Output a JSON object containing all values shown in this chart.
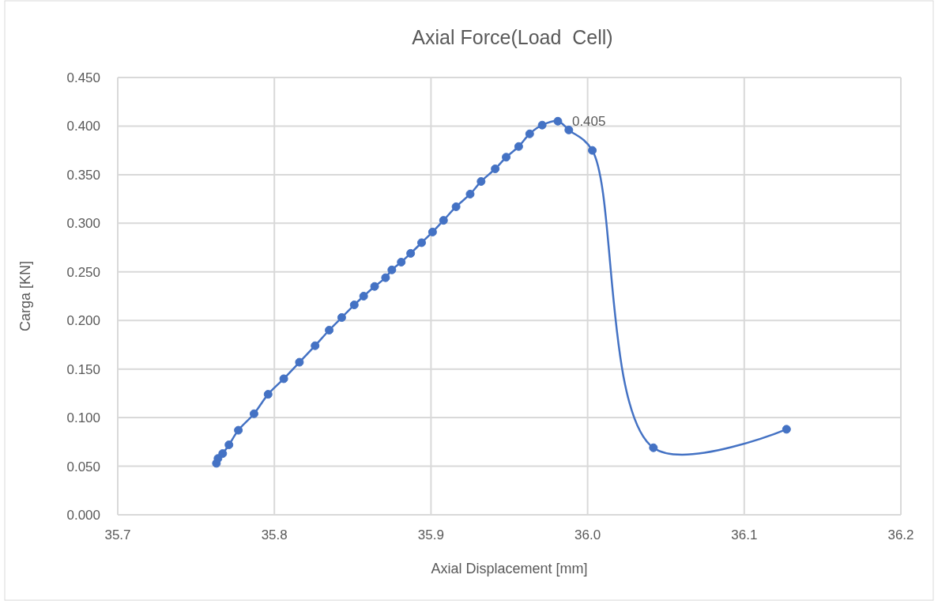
{
  "chart_data": {
    "type": "line",
    "title": "Axial Force(Load  Cell)",
    "xlabel": "Axial Displacement [mm]",
    "ylabel": "Carga [KN]",
    "xlim": [
      35.7,
      36.2
    ],
    "xticks": [
      {
        "value": 35.7,
        "label": "35.7"
      },
      {
        "value": 35.8,
        "label": "35.8"
      },
      {
        "value": 35.9,
        "label": "35.9"
      },
      {
        "value": 36.0,
        "label": "36.0"
      },
      {
        "value": 36.1,
        "label": "36.1"
      },
      {
        "value": 36.2,
        "label": "36.2"
      }
    ],
    "ylim": [
      0,
      0.45
    ],
    "yticks": [
      {
        "value": 0,
        "label": "0.000"
      },
      {
        "value": 0.05,
        "label": "0.050"
      },
      {
        "value": 0.1,
        "label": "0.100"
      },
      {
        "value": 0.15,
        "label": "0.150"
      },
      {
        "value": 0.2,
        "label": "0.200"
      },
      {
        "value": 0.25,
        "label": "0.250"
      },
      {
        "value": 0.3,
        "label": "0.300"
      },
      {
        "value": 0.35,
        "label": "0.350"
      },
      {
        "value": 0.4,
        "label": "0.400"
      },
      {
        "value": 0.45,
        "label": "0.450"
      }
    ],
    "grid": true,
    "marker": "circle",
    "line_style": "solid",
    "series": [
      {
        "color": "#4472c4",
        "x": [
          35.763,
          35.764,
          35.767,
          35.771,
          35.777,
          35.787,
          35.796,
          35.806,
          35.816,
          35.826,
          35.835,
          35.843,
          35.851,
          35.857,
          35.864,
          35.871,
          35.875,
          35.881,
          35.887,
          35.894,
          35.901,
          35.908,
          35.916,
          35.925,
          35.932,
          35.941,
          35.948,
          35.956,
          35.963,
          35.971,
          35.981,
          35.988,
          36.003,
          36.042,
          36.127
        ],
        "values": [
          0.053,
          0.058,
          0.063,
          0.072,
          0.087,
          0.104,
          0.124,
          0.14,
          0.157,
          0.174,
          0.19,
          0.203,
          0.216,
          0.225,
          0.235,
          0.244,
          0.252,
          0.26,
          0.269,
          0.28,
          0.291,
          0.303,
          0.317,
          0.33,
          0.343,
          0.356,
          0.368,
          0.379,
          0.392,
          0.401,
          0.405,
          0.396,
          0.375,
          0.069,
          0.088
        ],
        "value_labels": [
          null,
          null,
          null,
          null,
          null,
          null,
          null,
          null,
          null,
          null,
          null,
          null,
          null,
          null,
          null,
          null,
          null,
          null,
          null,
          null,
          null,
          null,
          null,
          null,
          null,
          null,
          null,
          null,
          null,
          null,
          "0.405",
          null,
          null,
          null,
          null
        ]
      }
    ]
  }
}
